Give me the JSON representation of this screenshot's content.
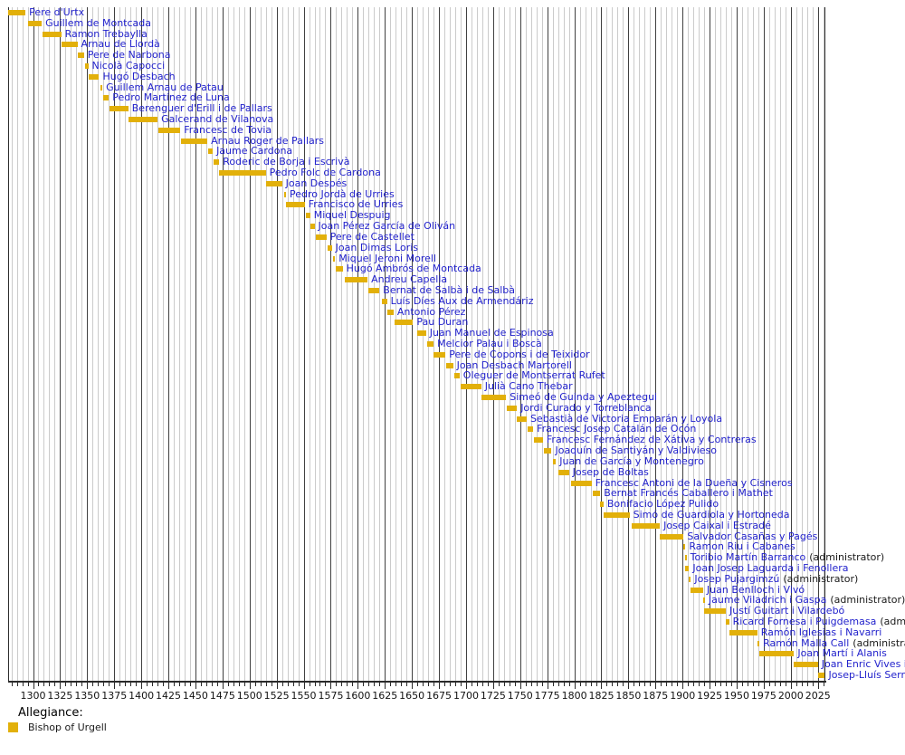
{
  "chart_data": {
    "type": "timeline",
    "title": "",
    "description": "Gantt-style tenure timeline of Bishops of Urgell",
    "axis": {
      "domain": [
        1277,
        2031.5
      ],
      "major_tick_step": 25,
      "minor_tick_step": 5,
      "tick_labels": [
        1300,
        1325,
        1350,
        1375,
        1400,
        1425,
        1450,
        1475,
        1500,
        1525,
        1550,
        1575,
        1600,
        1625,
        1650,
        1675,
        1700,
        1725,
        1750,
        1775,
        1800,
        1825,
        1850,
        1875,
        1900,
        1925,
        1950,
        1975,
        2000,
        2025
      ],
      "grid": "on"
    },
    "legend": {
      "title": "Allegiance:",
      "items": [
        {
          "label": "Bishop of Urgell",
          "color": "#E2B00A"
        }
      ],
      "position": "bottom-left"
    },
    "bar_color": "#E2B00A",
    "label_color": "#2222CC",
    "bars": [
      {
        "name": "Pere d'Urtx",
        "start": 1269,
        "end": 1293
      },
      {
        "name": "Guillem de Montcada",
        "start": 1295,
        "end": 1308
      },
      {
        "name": "Ramon Trebaylla",
        "start": 1309,
        "end": 1326
      },
      {
        "name": "Arnau de Llordà",
        "start": 1326,
        "end": 1341
      },
      {
        "name": "Pere de Narbona",
        "start": 1341,
        "end": 1347
      },
      {
        "name": "Nicolà Capocci",
        "start": 1348,
        "end": 1351
      },
      {
        "name": "Hugó Desbach",
        "start": 1351,
        "end": 1361
      },
      {
        "name": "Guillem Arnau de Patau",
        "start": 1362,
        "end": 1364
      },
      {
        "name": "Pedro Martínez de Luna",
        "start": 1365,
        "end": 1370
      },
      {
        "name": "Berenguer d'Erill i de Pallars",
        "start": 1371,
        "end": 1388
      },
      {
        "name": "Galcerand de Vilanova",
        "start": 1388,
        "end": 1415
      },
      {
        "name": "Francesc de Tovia",
        "start": 1416,
        "end": 1436
      },
      {
        "name": "Arnau Roger de Pallars",
        "start": 1437,
        "end": 1461
      },
      {
        "name": "Jaume Cardona",
        "start": 1462,
        "end": 1466
      },
      {
        "name": "Roderic de Borja i Escrivà",
        "start": 1467,
        "end": 1472
      },
      {
        "name": "Pedro Folc de Cardona",
        "start": 1472,
        "end": 1515
      },
      {
        "name": "Joan Despés",
        "start": 1515,
        "end": 1530
      },
      {
        "name": "Pedro Jordà de Urries",
        "start": 1532,
        "end": 1533
      },
      {
        "name": "Francisco de Urries",
        "start": 1534,
        "end": 1551
      },
      {
        "name": "Miquel Despuig",
        "start": 1552,
        "end": 1556
      },
      {
        "name": "Joan Pérez García de Oliván",
        "start": 1556,
        "end": 1560
      },
      {
        "name": "Pere de Castellet",
        "start": 1561,
        "end": 1571
      },
      {
        "name": "Joan Dimas Loris",
        "start": 1572,
        "end": 1576
      },
      {
        "name": "Miquel Jeroni Morell",
        "start": 1577,
        "end": 1579
      },
      {
        "name": "Hugó Ambrós de Montcada",
        "start": 1580,
        "end": 1586
      },
      {
        "name": "Andreu Capella",
        "start": 1588,
        "end": 1609
      },
      {
        "name": "Bernat de Salbà i de Salbà",
        "start": 1610,
        "end": 1620
      },
      {
        "name": "Luís Díes Aux de Armendáriz",
        "start": 1622,
        "end": 1627
      },
      {
        "name": "Antonio Pérez",
        "start": 1627,
        "end": 1633
      },
      {
        "name": "Pau Duran",
        "start": 1634,
        "end": 1651
      },
      {
        "name": "Juan Manuel de Espinosa",
        "start": 1655,
        "end": 1663
      },
      {
        "name": "Melcior Palau i Boscà",
        "start": 1664,
        "end": 1670
      },
      {
        "name": "Pere de Copons i de Teixidor",
        "start": 1670,
        "end": 1681
      },
      {
        "name": "Joan Desbach Martorell",
        "start": 1682,
        "end": 1688
      },
      {
        "name": "Oleguer de Montserrat Rufet",
        "start": 1689,
        "end": 1694
      },
      {
        "name": "Julià Cano Thebar",
        "start": 1695,
        "end": 1714
      },
      {
        "name": "Simeó de Guinda y Apeztegui",
        "start": 1714,
        "end": 1737
      },
      {
        "name": "Jordi Curado y Torreblanca",
        "start": 1738,
        "end": 1747
      },
      {
        "name": "Sebastià de Victoria Emparán y Loyola",
        "start": 1747,
        "end": 1756
      },
      {
        "name": "Francesc Josep Catalán de Ocón",
        "start": 1757,
        "end": 1762
      },
      {
        "name": "Francesc Fernández de Xátiva y Contreras",
        "start": 1763,
        "end": 1771
      },
      {
        "name": "Joaquín de Santiyán y Valdivieso",
        "start": 1772,
        "end": 1779
      },
      {
        "name": "Juan de García y Montenegro",
        "start": 1780,
        "end": 1783
      },
      {
        "name": "Josep de Boltas",
        "start": 1785,
        "end": 1795
      },
      {
        "name": "Francesc Antoni de la Dueña y Cisneros",
        "start": 1797,
        "end": 1816
      },
      {
        "name": "Bernat Francés Caballero i Mathet",
        "start": 1817,
        "end": 1824
      },
      {
        "name": "Bonifacio López Pulido",
        "start": 1824,
        "end": 1827
      },
      {
        "name": "Simó de Guardiola y Hortoneda",
        "start": 1827,
        "end": 1851
      },
      {
        "name": "Josep Caixal i Estradé",
        "start": 1853,
        "end": 1879
      },
      {
        "name": "Salvador Casañas y Pagés",
        "start": 1879,
        "end": 1901
      },
      {
        "name": "Ramon Riu i Cabanes",
        "start": 1901,
        "end": 1902
      },
      {
        "name": "Toribio Martín Barranco",
        "suffix": "(administrator)",
        "start": 1902,
        "end": 1902
      },
      {
        "name": "Joan Josep Laguarda i Fenollera",
        "start": 1902,
        "end": 1906
      },
      {
        "name": "Josep Pujargimzú",
        "suffix": "(administrator)",
        "start": 1906,
        "end": 1907
      },
      {
        "name": "Juan Benlloch i Vivó",
        "start": 1907,
        "end": 1919
      },
      {
        "name": "Jaume Viladrich i Gaspa",
        "suffix": "(administrator)",
        "start": 1919,
        "end": 1920
      },
      {
        "name": "Justí Guitart i Vilardebó",
        "start": 1920,
        "end": 1940
      },
      {
        "name": "Ricard Fornesa i Puigdemasa",
        "suffix": "(administrator)",
        "start": 1940,
        "end": 1943
      },
      {
        "name": "Ramón Iglesias i Navarri",
        "start": 1943,
        "end": 1969
      },
      {
        "name": "Ramón Malla Call",
        "suffix": "(administrator)",
        "start": 1969,
        "end": 1971
      },
      {
        "name": "Joan Martí i Alanis",
        "start": 1971,
        "end": 2003
      },
      {
        "name": "Joan Enric Vives i Sicília",
        "start": 2003,
        "end": 2025
      },
      {
        "name": "Josep-Lluís Serrano Pentinat",
        "start": 2025,
        "end": 2032
      }
    ]
  },
  "layout_colors": {
    "grid_minor": "#cbcbcb",
    "grid_major": "#404040",
    "axis": "#2a2a2a",
    "background": "#ffffff"
  }
}
